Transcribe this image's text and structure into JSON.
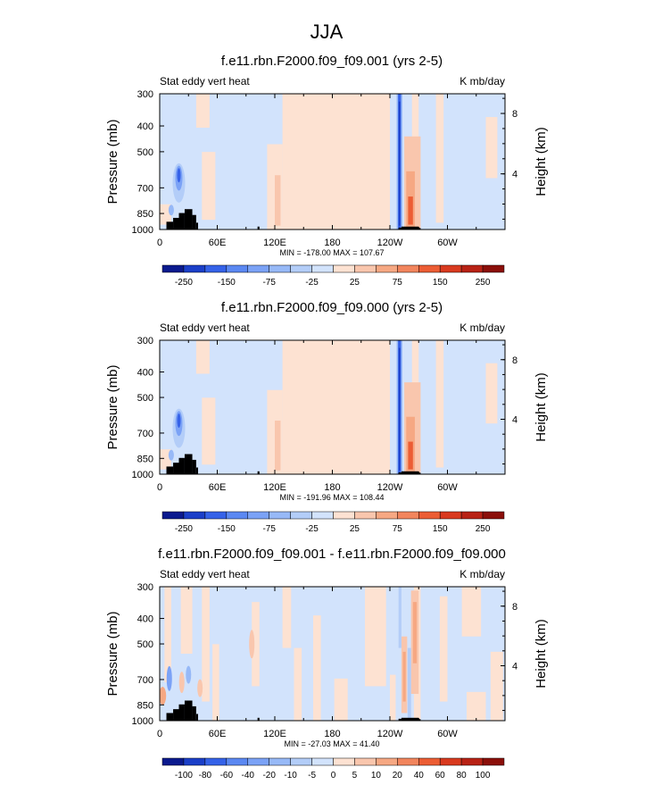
{
  "figure": {
    "title": "JJA"
  },
  "chart_data": [
    {
      "type": "heatmap",
      "title": "f.e11.rbn.F2000.f09_f09.001 (yrs 2-5)",
      "left_label": "Stat eddy vert heat",
      "units": "K mb/day",
      "ylabel": "Pressure (mb)",
      "ylabel_right": "Height (km)",
      "x_ticks": [
        "0",
        "60E",
        "120E",
        "180",
        "120W",
        "60W"
      ],
      "x_tick_values": [
        0,
        60,
        120,
        180,
        240,
        300
      ],
      "xlim": [
        0,
        360
      ],
      "y_ticks": [
        "300",
        "400",
        "500",
        "700",
        "850",
        "1000"
      ],
      "y_tick_values": [
        300,
        400,
        500,
        700,
        850,
        1000
      ],
      "ylim": [
        300,
        1000
      ],
      "right_ticks": [
        "8",
        "4"
      ],
      "right_tick_values": [
        8,
        4
      ],
      "stats": "MIN = -178.00  MAX = 107.67",
      "min": -178.0,
      "max": 107.67,
      "colorbar_labels": [
        "-250",
        "-150",
        "-75",
        "-25",
        "25",
        "75",
        "150",
        "250"
      ],
      "levels": [
        -300,
        -250,
        -200,
        -150,
        -100,
        -75,
        -50,
        -25,
        0,
        25,
        50,
        75,
        100,
        150,
        200,
        250,
        300
      ],
      "features": [
        {
          "lon": 17,
          "p": 725,
          "value": -100,
          "note": "negative column near 10-25E"
        },
        {
          "lon": 120,
          "p": 800,
          "value": 30,
          "note": "positive tongue near 120E"
        },
        {
          "lon": 250,
          "p": 650,
          "value": -178,
          "note": "strong negative column ~110W"
        },
        {
          "lon": 262,
          "p": 800,
          "value": 107,
          "note": "positive column ~100W"
        }
      ]
    },
    {
      "type": "heatmap",
      "title": "f.e11.rbn.F2000.f09_f09.000 (yrs 2-5)",
      "left_label": "Stat eddy vert heat",
      "units": "K mb/day",
      "ylabel": "Pressure (mb)",
      "ylabel_right": "Height (km)",
      "x_ticks": [
        "0",
        "60E",
        "120E",
        "180",
        "120W",
        "60W"
      ],
      "x_tick_values": [
        0,
        60,
        120,
        180,
        240,
        300
      ],
      "xlim": [
        0,
        360
      ],
      "y_ticks": [
        "300",
        "400",
        "500",
        "700",
        "850",
        "1000"
      ],
      "y_tick_values": [
        300,
        400,
        500,
        700,
        850,
        1000
      ],
      "ylim": [
        300,
        1000
      ],
      "right_ticks": [
        "8",
        "4"
      ],
      "right_tick_values": [
        8,
        4
      ],
      "stats": "MIN = -191.96  MAX = 108.44",
      "min": -191.96,
      "max": 108.44,
      "colorbar_labels": [
        "-250",
        "-150",
        "-75",
        "-25",
        "25",
        "75",
        "150",
        "250"
      ],
      "levels": [
        -300,
        -250,
        -200,
        -150,
        -100,
        -75,
        -50,
        -25,
        0,
        25,
        50,
        75,
        100,
        150,
        200,
        250,
        300
      ],
      "features": [
        {
          "lon": 17,
          "p": 725,
          "value": -110,
          "note": "negative column near 10-25E"
        },
        {
          "lon": 120,
          "p": 800,
          "value": 30,
          "note": "positive tongue near 120E"
        },
        {
          "lon": 250,
          "p": 650,
          "value": -191.96,
          "note": "strong negative column ~110W"
        },
        {
          "lon": 262,
          "p": 800,
          "value": 108.44,
          "note": "positive column ~100W"
        }
      ]
    },
    {
      "type": "heatmap",
      "title": "f.e11.rbn.F2000.f09_f09.001 - f.e11.rbn.F2000.f09_f09.000",
      "left_label": "Stat eddy vert heat",
      "units": "K mb/day",
      "ylabel": "Pressure (mb)",
      "ylabel_right": "Height (km)",
      "x_ticks": [
        "0",
        "60E",
        "120E",
        "180",
        "120W",
        "60W"
      ],
      "x_tick_values": [
        0,
        60,
        120,
        180,
        240,
        300
      ],
      "xlim": [
        0,
        360
      ],
      "y_ticks": [
        "300",
        "400",
        "500",
        "700",
        "850",
        "1000"
      ],
      "y_tick_values": [
        300,
        400,
        500,
        700,
        850,
        1000
      ],
      "ylim": [
        300,
        1000
      ],
      "right_ticks": [
        "8",
        "4"
      ],
      "right_tick_values": [
        8,
        4
      ],
      "stats": "MIN = -27.03  MAX = 41.40",
      "min": -27.03,
      "max": 41.4,
      "colorbar_labels": [
        "-100",
        "-80",
        "-60",
        "-40",
        "-20",
        "-10",
        "-5",
        "0",
        "5",
        "10",
        "20",
        "40",
        "60",
        "80",
        "100"
      ],
      "levels": [
        -120,
        -100,
        -80,
        -60,
        -40,
        -20,
        -10,
        -5,
        0,
        5,
        10,
        20,
        40,
        60,
        80,
        100,
        120
      ],
      "features": [
        {
          "lon": 250,
          "p": 720,
          "value": 41.4,
          "note": "positive column ~110W"
        },
        {
          "lon": 262,
          "p": 650,
          "value": -27.03,
          "note": "negative column ~100W"
        },
        {
          "lon": 15,
          "p": 800,
          "value": -20,
          "note": "negative near 15E"
        }
      ]
    }
  ],
  "colors": {
    "neg": [
      "#0b1a8e",
      "#1b3fc8",
      "#3562e8",
      "#5b88f2",
      "#7ba2f6",
      "#97b9f7",
      "#b3cdf8",
      "#d2e3fc"
    ],
    "pos": [
      "#fde2d2",
      "#f9c6ad",
      "#f6a883",
      "#f2855d",
      "#ec5d34",
      "#d93a1f",
      "#b82215",
      "#8b0f0a"
    ],
    "land": "#000000"
  }
}
